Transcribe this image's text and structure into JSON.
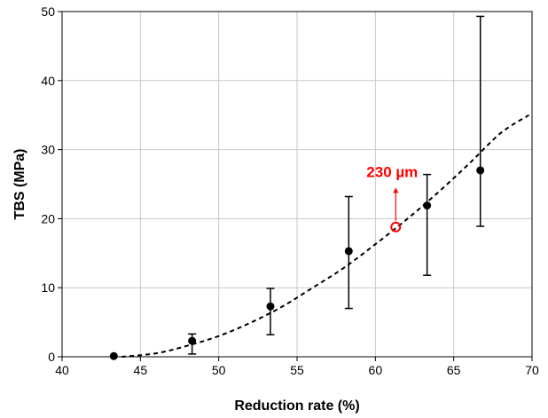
{
  "chart_data": {
    "type": "scatter",
    "xlabel": "Reduction rate (%)",
    "ylabel": "TBS (MPa)",
    "xlim": [
      40,
      70
    ],
    "ylim": [
      0,
      50
    ],
    "x_ticks": [
      "40",
      "45",
      "50",
      "55",
      "60",
      "65",
      "70"
    ],
    "y_ticks": [
      "0",
      "10",
      "20",
      "30",
      "40",
      "50"
    ],
    "grid": true,
    "series": [
      {
        "marker": "filled-circle",
        "color": "#000000",
        "points": [
          {
            "x": 43.3,
            "y": 0.1,
            "err_low": 0.1,
            "err_high": 0.1
          },
          {
            "x": 48.3,
            "y": 2.3,
            "err_low": 0.4,
            "err_high": 3.3
          },
          {
            "x": 53.3,
            "y": 7.3,
            "err_low": 3.2,
            "err_high": 9.9
          },
          {
            "x": 58.3,
            "y": 15.3,
            "err_low": 7.0,
            "err_high": 23.2
          },
          {
            "x": 63.3,
            "y": 21.9,
            "err_low": 11.8,
            "err_high": 26.4
          },
          {
            "x": 66.7,
            "y": 27.0,
            "err_low": 18.9,
            "err_high": 49.3
          }
        ]
      }
    ],
    "fit_curve": {
      "style": "dashed",
      "color": "#000000",
      "points": [
        {
          "x": 43.8,
          "y": 0.0
        },
        {
          "x": 46,
          "y": 0.5
        },
        {
          "x": 48,
          "y": 1.6
        },
        {
          "x": 50,
          "y": 3.0
        },
        {
          "x": 52,
          "y": 4.9
        },
        {
          "x": 54,
          "y": 7.2
        },
        {
          "x": 56,
          "y": 10.0
        },
        {
          "x": 58,
          "y": 12.9
        },
        {
          "x": 60,
          "y": 16.3
        },
        {
          "x": 62,
          "y": 19.9
        },
        {
          "x": 64,
          "y": 23.8
        },
        {
          "x": 66,
          "y": 28.0
        },
        {
          "x": 68,
          "y": 32.4
        },
        {
          "x": 69.8,
          "y": 35.0
        }
      ]
    },
    "annotation": {
      "text": "230 µm",
      "color": "#ff0000",
      "point": {
        "x": 61.3,
        "y": 18.8
      },
      "arrow_to_y": 24.5
    }
  }
}
